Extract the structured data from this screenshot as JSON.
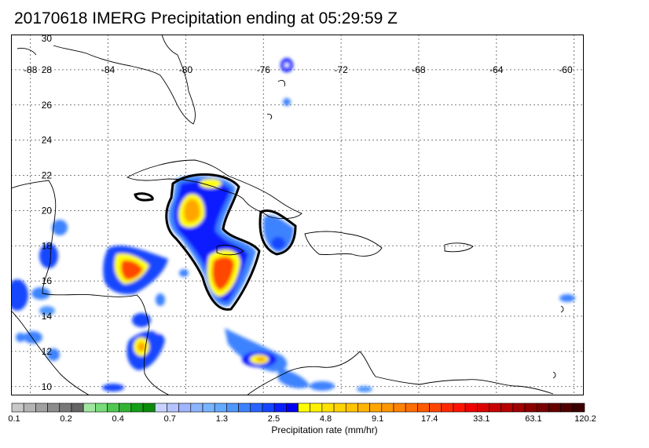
{
  "title": "20170618 IMERG Precipitation ending at 05:29:59 Z",
  "map": {
    "lon_range": [
      -89,
      -59.5
    ],
    "lat_range": [
      9.5,
      30
    ],
    "lat_ticks": [
      10,
      12,
      14,
      16,
      18,
      20,
      22,
      24,
      26,
      28,
      30
    ],
    "lon_ticks": [
      -88,
      -84,
      -80,
      -76,
      -72,
      -68,
      -64,
      -60
    ],
    "lon_label_lat": 28,
    "gridlines": "dotted",
    "coastline_color": "#000000"
  },
  "colorbar": {
    "title": "Precipitation rate (mm/hr)",
    "labels": [
      "0.1",
      "0.2",
      "0.4",
      "0.7",
      "1.3",
      "2.5",
      "4.8",
      "9.1",
      "17.4",
      "33.1",
      "63.1",
      "120.2"
    ],
    "colors": [
      "#c8c8c8",
      "#b4b4b4",
      "#a0a0a0",
      "#8c8c8c",
      "#787878",
      "#646464",
      "#a0e6a0",
      "#78dc78",
      "#50c850",
      "#32b432",
      "#14a014",
      "#0a8c0a",
      "#c8d2ff",
      "#b4c3ff",
      "#a0b4ff",
      "#8cb4ff",
      "#78b4ff",
      "#64aaff",
      "#5096ff",
      "#3c82ff",
      "#2864ff",
      "#1446ff",
      "#0a1eff",
      "#0000f0",
      "#ffff00",
      "#fff000",
      "#ffe100",
      "#ffd200",
      "#ffc300",
      "#ffb400",
      "#ffa500",
      "#ff9600",
      "#ff8200",
      "#ff6e00",
      "#ff5a00",
      "#ff4600",
      "#ff2800",
      "#ff1400",
      "#f00000",
      "#dc0000",
      "#c80000",
      "#b40000",
      "#a00000",
      "#8c0000",
      "#780000",
      "#640000",
      "#500000",
      "#3c0000"
    ]
  }
}
